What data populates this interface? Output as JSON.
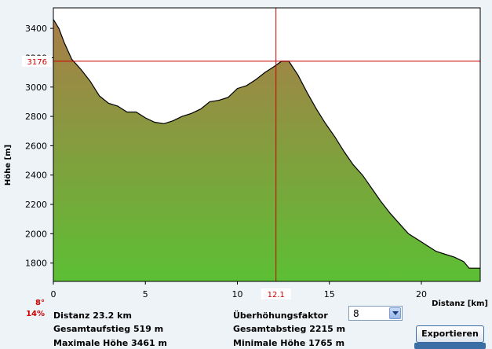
{
  "chart_data": {
    "type": "area",
    "xlabel": "Distanz [km]",
    "ylabel": "Höhe [m]",
    "xlim": [
      0,
      23.2
    ],
    "ylim": [
      1675,
      3540
    ],
    "xticks": [
      0,
      5,
      10,
      15,
      20
    ],
    "yticks": [
      1800,
      2000,
      2200,
      2400,
      2600,
      2800,
      3000,
      3200,
      3400
    ],
    "grid": false,
    "x": [
      0,
      0.3,
      0.6,
      1.0,
      1.5,
      2.0,
      2.5,
      3.0,
      3.5,
      4.0,
      4.5,
      5.0,
      5.5,
      6.0,
      6.5,
      7.0,
      7.5,
      8.0,
      8.5,
      9.0,
      9.5,
      10.0,
      10.5,
      11.0,
      11.5,
      12.0,
      12.4,
      12.8,
      13.3,
      13.8,
      14.3,
      14.8,
      15.3,
      15.8,
      16.3,
      16.8,
      17.3,
      17.8,
      18.3,
      18.8,
      19.3,
      19.8,
      20.3,
      20.8,
      21.3,
      21.8,
      22.3,
      22.6,
      23.2
    ],
    "y": [
      3461,
      3400,
      3300,
      3190,
      3120,
      3040,
      2940,
      2890,
      2870,
      2830,
      2830,
      2790,
      2760,
      2750,
      2770,
      2800,
      2820,
      2850,
      2900,
      2910,
      2930,
      2990,
      3010,
      3050,
      3100,
      3140,
      3176,
      3176,
      3080,
      2960,
      2850,
      2750,
      2660,
      2560,
      2470,
      2400,
      2310,
      2220,
      2140,
      2070,
      2000,
      1960,
      1920,
      1880,
      1860,
      1840,
      1810,
      1765,
      1765
    ],
    "crosshair": {
      "x": 12.1,
      "y": 3176
    },
    "crosshair_x_label": "12.1",
    "crosshair_y_label": "3176",
    "colors": {
      "fill_top": "#a97d48",
      "fill_bottom": "#5cbf34",
      "crosshair": "#cc0000",
      "line": "#000000"
    }
  },
  "slope": {
    "degrees": "8°",
    "percent": "14%"
  },
  "stats": {
    "distanz": "Distanz 23.2 km",
    "gesamtaufstieg": "Gesamtaufstieg  519 m",
    "maximale_hoehe": "Maximale Höhe  3461 m",
    "ueberhoehungsfaktor": "Überhöhungsfaktor",
    "gesamtabstieg": "Gesamtabstieg  2215 m",
    "minimale_hoehe": "Minimale Höhe  1765 m"
  },
  "factor_select": {
    "value": "8"
  },
  "export_button": {
    "label": "Exportieren"
  }
}
